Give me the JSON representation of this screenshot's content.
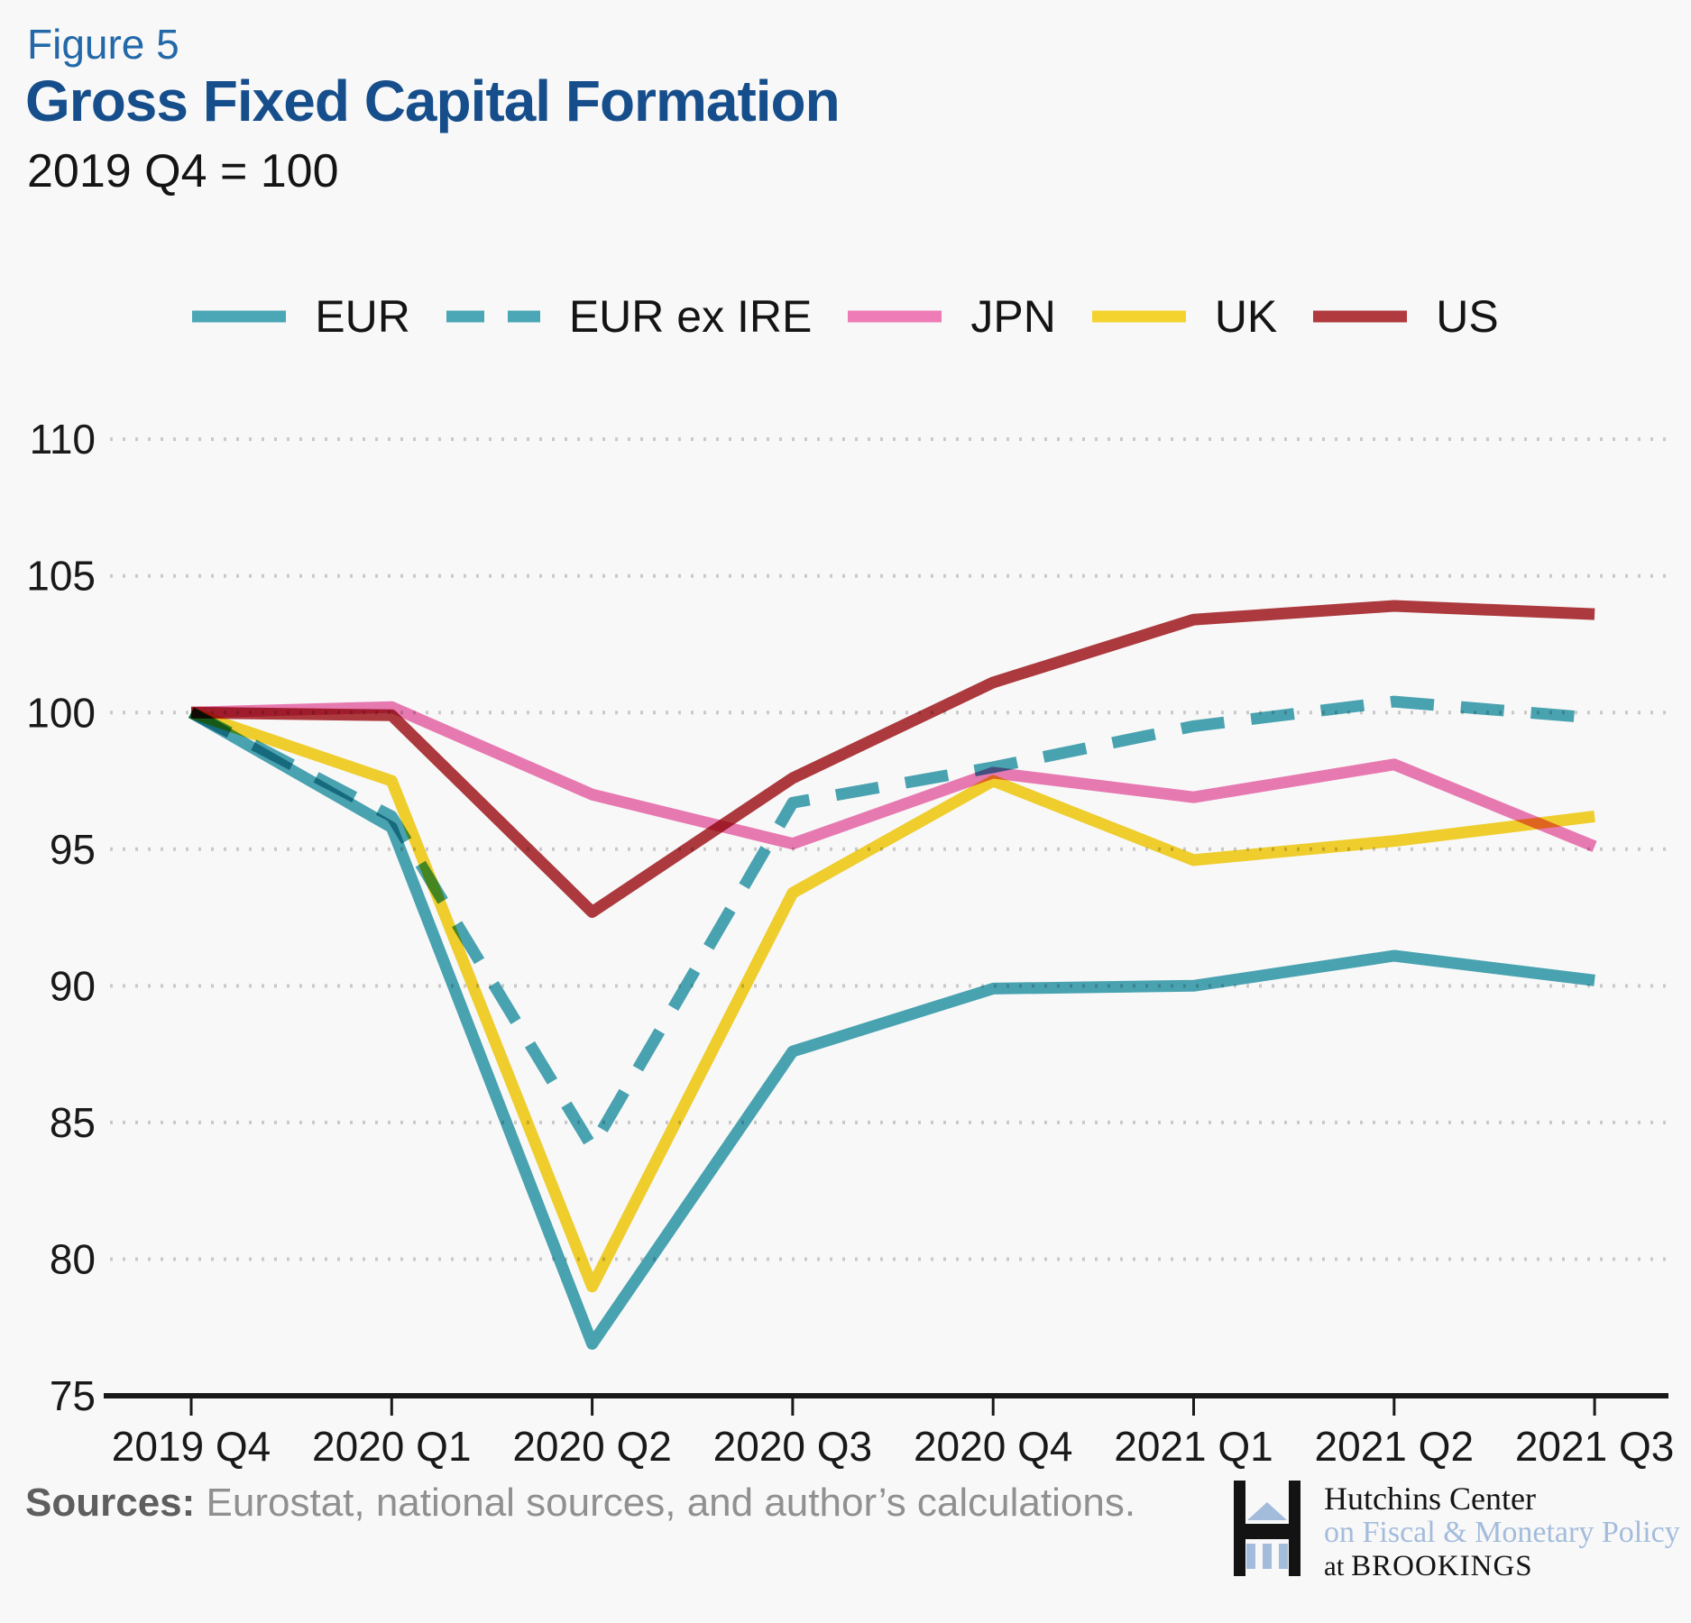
{
  "figure_label": "Figure 5",
  "title": "Gross Fixed Capital Formation",
  "subtitle": "2019 Q4 = 100",
  "source_note": {
    "prefix": "Sources:",
    "text": " Eurostat, national sources, and author’s calculations."
  },
  "logo": {
    "line1": "Hutchins Center",
    "line2": "on Fiscal & Monetary Policy",
    "line3_prefix": "at ",
    "line3": "BROOKINGS"
  },
  "colors": {
    "background": "#F8F8F8",
    "teal": "#4BA7B5",
    "pink": "#EE7CB6",
    "yellow": "#F5D32E",
    "dark_red": "#B13A3E",
    "figure_label_blue": "#2368A8",
    "title_navy": "#164E8C",
    "gridline_gray": "#C9C9C9",
    "axis_black": "#191919",
    "logo_light_blue": "#A3BCDC"
  },
  "chart_data": {
    "type": "line",
    "title": "Gross Fixed Capital Formation",
    "subtitle": "2019 Q4 = 100",
    "categories": [
      "2019 Q4",
      "2020 Q1",
      "2020 Q2",
      "2020 Q3",
      "2020 Q4",
      "2021 Q1",
      "2021 Q2",
      "2021 Q3"
    ],
    "ylim": [
      75,
      110
    ],
    "yticks": [
      75,
      80,
      85,
      90,
      95,
      100,
      105,
      110
    ],
    "grid": "horizontal-dotted",
    "legend_position": "top-center",
    "series": [
      {
        "name": "EUR",
        "color": "#4BA7B5",
        "dash": false,
        "values": [
          100,
          95.8,
          76.9,
          87.6,
          89.9,
          90.0,
          91.1,
          90.2
        ]
      },
      {
        "name": "EUR ex IRE",
        "color": "#4BA7B5",
        "dash": true,
        "values": [
          100,
          96.2,
          84.1,
          96.7,
          98.0,
          99.5,
          100.4,
          99.8
        ]
      },
      {
        "name": "JPN",
        "color": "#EE7CB6",
        "dash": false,
        "values": [
          100,
          100.2,
          97.0,
          95.2,
          97.8,
          96.9,
          98.1,
          95.1
        ]
      },
      {
        "name": "UK",
        "color": "#F5D32E",
        "dash": false,
        "values": [
          100,
          97.5,
          79.0,
          93.4,
          97.5,
          94.6,
          95.3,
          96.2
        ]
      },
      {
        "name": "US",
        "color": "#B13A3E",
        "dash": false,
        "values": [
          100,
          99.9,
          92.7,
          97.6,
          101.1,
          103.4,
          103.9,
          103.6
        ]
      }
    ]
  }
}
